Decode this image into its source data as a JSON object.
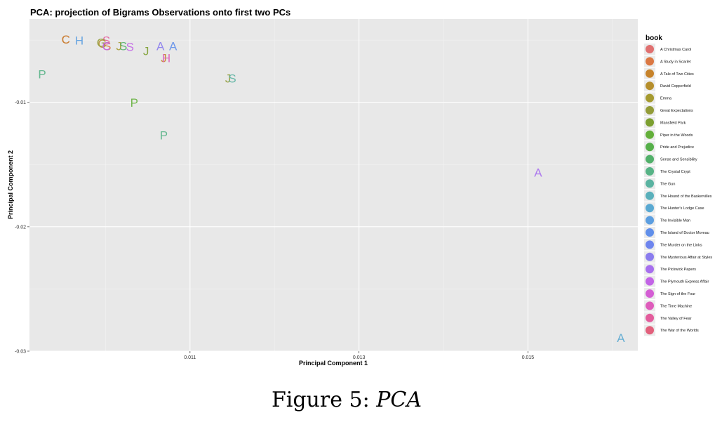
{
  "chart_data": {
    "type": "scatter",
    "title": "PCA: projection of Bigrams Observations onto first two PCs",
    "xlabel": "Principal Component 1",
    "ylabel": "Principal Component 2",
    "xlim": [
      0.0091,
      0.0163
    ],
    "ylim": [
      -0.03,
      -0.0033
    ],
    "x_ticks": [
      0.011,
      0.013,
      0.015
    ],
    "x_tick_labels": [
      "0.011",
      "0.013",
      "0.015"
    ],
    "y_ticks": [
      -0.01,
      -0.02,
      -0.03
    ],
    "y_tick_labels": [
      "-0.01",
      "-0.02",
      "-0.03"
    ],
    "grid": true,
    "legend": {
      "title": "book",
      "placement": "right",
      "entries": [
        {
          "name": "A Christmas Carol",
          "color": "#E07070"
        },
        {
          "name": "A Study in Scarlet",
          "color": "#DB7843"
        },
        {
          "name": "A Tale of Two Cities",
          "color": "#C7832B"
        },
        {
          "name": "David Copperfield",
          "color": "#B58E2C"
        },
        {
          "name": "Emma",
          "color": "#A59A30"
        },
        {
          "name": "Great Expectations",
          "color": "#939C38"
        },
        {
          "name": "Mansfield Park",
          "color": "#7C9F30"
        },
        {
          "name": "Piper in the Woods",
          "color": "#63AF3A"
        },
        {
          "name": "Pride and Prejudice",
          "color": "#56B04A"
        },
        {
          "name": "Sense and Sensibility",
          "color": "#52B06A"
        },
        {
          "name": "The Crystal Crypt",
          "color": "#57B386"
        },
        {
          "name": "The Gun",
          "color": "#5AB3A1"
        },
        {
          "name": "The Hound of the Baskervilles",
          "color": "#5AB0BB"
        },
        {
          "name": "The Hunter's Lodge Case",
          "color": "#5AA9D2"
        },
        {
          "name": "The Invisible Man",
          "color": "#5C9EE0"
        },
        {
          "name": "The Island of Doctor Moreau",
          "color": "#608FEA"
        },
        {
          "name": "The Murder on the Links",
          "color": "#6E85EE"
        },
        {
          "name": "The Mysterious Affair at Styles",
          "color": "#8A7CEE"
        },
        {
          "name": "The Pickwick Papers",
          "color": "#A76FEE"
        },
        {
          "name": "The Plymouth Express Affair",
          "color": "#C264E6"
        },
        {
          "name": "The Sign of the Four",
          "color": "#D45ED4"
        },
        {
          "name": "The Time Machine",
          "color": "#DE5CBB"
        },
        {
          "name": "The Valley of Fear",
          "color": "#E35C9C"
        },
        {
          "name": "The War of the Worlds",
          "color": "#E2607C"
        }
      ]
    },
    "points": [
      {
        "label": "C",
        "book": "A Christmas Carol",
        "x": 0.00953,
        "y": -0.00493
      },
      {
        "label": "C",
        "book": "A Tale of Two Cities",
        "x": 0.00953,
        "y": -0.00493
      },
      {
        "label": "H",
        "book": "The Invisible Man",
        "x": 0.00969,
        "y": -0.00503
      },
      {
        "label": "S",
        "book": "The Valley of Fear",
        "x": 0.01001,
        "y": -0.00503
      },
      {
        "label": "S",
        "book": "A Study in Scarlet",
        "x": 0.01002,
        "y": -0.00548
      },
      {
        "label": "C",
        "book": "David Copperfield",
        "x": 0.00996,
        "y": -0.00528
      },
      {
        "label": "G",
        "book": "Great Expectations",
        "x": 0.00995,
        "y": -0.0052
      },
      {
        "label": "C",
        "book": "The Plymouth Express Affair",
        "x": 0.01001,
        "y": -0.00548
      },
      {
        "label": "J",
        "book": "Emma",
        "x": 0.01016,
        "y": -0.00548
      },
      {
        "label": "S",
        "book": "Sense and Sensibility",
        "x": 0.01021,
        "y": -0.00548
      },
      {
        "label": "S",
        "book": "The Plymouth Express Affair",
        "x": 0.01029,
        "y": -0.00553
      },
      {
        "label": "J",
        "book": "Mansfield Park",
        "x": 0.01048,
        "y": -0.00588
      },
      {
        "label": "A",
        "book": "The Mysterious Affair at Styles",
        "x": 0.01065,
        "y": -0.00548
      },
      {
        "label": "A",
        "book": "The Island of Doctor Moreau",
        "x": 0.0108,
        "y": -0.00548
      },
      {
        "label": "J",
        "book": "A Tale of Two Cities",
        "x": 0.01069,
        "y": -0.00643
      },
      {
        "label": "H",
        "book": "The Time Machine",
        "x": 0.01072,
        "y": -0.00643
      },
      {
        "label": "P",
        "book": "The Crystal Crypt",
        "x": 0.00925,
        "y": -0.00773
      },
      {
        "label": "J",
        "book": "Great Expectations",
        "x": 0.01145,
        "y": -0.00808
      },
      {
        "label": "S",
        "book": "The Gun",
        "x": 0.0115,
        "y": -0.00808
      },
      {
        "label": "P",
        "book": "Piper in the Woods",
        "x": 0.01034,
        "y": -0.01003
      },
      {
        "label": "P",
        "book": "The Crystal Crypt",
        "x": 0.01069,
        "y": -0.01263
      },
      {
        "label": "A",
        "book": "The Pickwick Papers",
        "x": 0.01512,
        "y": -0.01563
      },
      {
        "label": "A",
        "book": "The Hunter's Lodge Case",
        "x": 0.0161,
        "y": -0.02893
      }
    ]
  },
  "caption": {
    "prefix": "Figure 5: ",
    "text": "PCA"
  }
}
